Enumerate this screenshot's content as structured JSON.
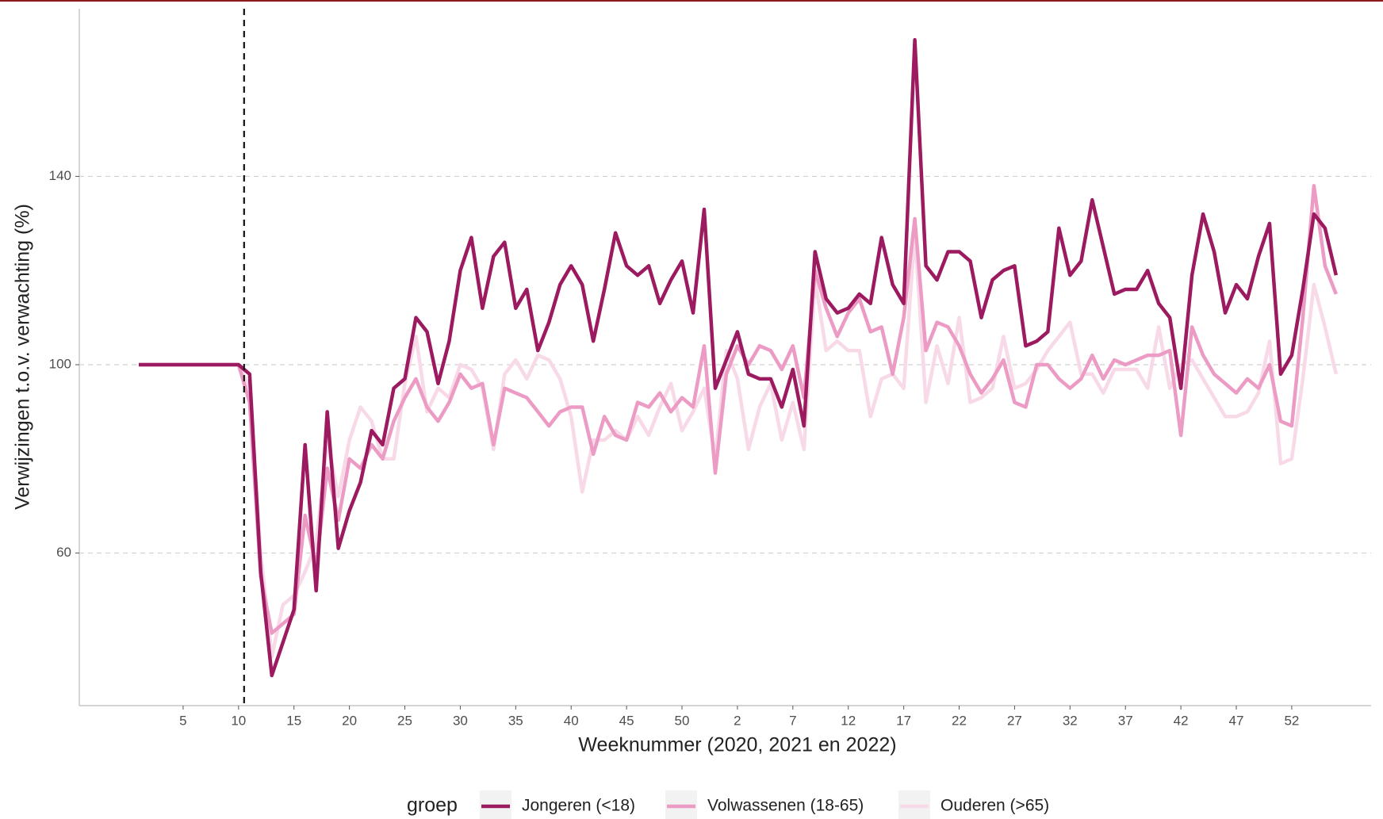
{
  "chart_data": {
    "type": "line",
    "x_label": "Weeknummer (2020, 2021 en 2022)",
    "y_label": "Verwijzingen t.o.v. verwachting (%)",
    "legend_title": "groep",
    "categories": [
      null,
      null,
      null,
      null,
      "5",
      null,
      null,
      null,
      null,
      "10",
      null,
      null,
      null,
      null,
      "15",
      null,
      null,
      null,
      null,
      "20",
      null,
      null,
      null,
      null,
      "25",
      null,
      null,
      null,
      null,
      "30",
      null,
      null,
      null,
      null,
      "35",
      null,
      null,
      null,
      null,
      "40",
      null,
      null,
      null,
      null,
      "45",
      null,
      null,
      null,
      null,
      "50",
      null,
      null,
      null,
      null,
      "2",
      null,
      null,
      null,
      null,
      "7",
      null,
      null,
      null,
      null,
      "12",
      null,
      null,
      null,
      null,
      "17",
      null,
      null,
      null,
      null,
      "22",
      null,
      null,
      null,
      null,
      "27",
      null,
      null,
      null,
      null,
      "32",
      null,
      null,
      null,
      null,
      "37",
      null,
      null,
      null,
      null,
      "42",
      null,
      null,
      null,
      null,
      "47",
      null,
      null,
      null,
      null,
      "52",
      null,
      null,
      null,
      null
    ],
    "series": [
      {
        "name": "Jongeren (<18)",
        "color": "#9c1a5f",
        "values": [
          100,
          100,
          100,
          100,
          100,
          100,
          100,
          100,
          100,
          100,
          98,
          56,
          34,
          41,
          48,
          83,
          52,
          90,
          61,
          69,
          75,
          86,
          83,
          95,
          97,
          110,
          107,
          96,
          105,
          120,
          127,
          112,
          123,
          126,
          112,
          116,
          103,
          109,
          117,
          121,
          117,
          105,
          116,
          128,
          121,
          119,
          121,
          113,
          118,
          122,
          111,
          133,
          95,
          101,
          107,
          98,
          97,
          97,
          91,
          99,
          87,
          124,
          114,
          111,
          112,
          115,
          113,
          127,
          117,
          113,
          169,
          121,
          118,
          124,
          124,
          122,
          110,
          118,
          120,
          121,
          104,
          105,
          107,
          129,
          119,
          122,
          135,
          125,
          115,
          116,
          116,
          120,
          113,
          110,
          95,
          119,
          132,
          124,
          111,
          117,
          114,
          123,
          130,
          98,
          102,
          116,
          132,
          129,
          119
        ]
      },
      {
        "name": "Volwassenen (18-65)",
        "color": "#ec9cc4",
        "values": [
          100,
          100,
          100,
          100,
          100,
          100,
          100,
          100,
          100,
          100,
          92,
          55,
          43,
          45,
          47,
          68,
          57,
          78,
          67,
          80,
          78,
          83,
          80,
          88,
          93,
          97,
          91,
          88,
          92,
          98,
          95,
          96,
          83,
          95,
          94,
          93,
          90,
          87,
          90,
          91,
          91,
          81,
          89,
          85,
          84,
          92,
          91,
          94,
          90,
          93,
          91,
          104,
          77,
          98,
          104,
          100,
          104,
          103,
          99,
          104,
          93,
          120,
          112,
          106,
          111,
          114,
          107,
          108,
          98,
          110,
          131,
          103,
          109,
          108,
          104,
          98,
          94,
          97,
          101,
          92,
          91,
          100,
          100,
          97,
          95,
          97,
          102,
          97,
          101,
          100,
          101,
          102,
          102,
          103,
          85,
          108,
          102,
          98,
          96,
          94,
          97,
          95,
          100,
          88,
          87,
          110,
          138,
          121,
          115
        ]
      },
      {
        "name": "Ouderen (>65)",
        "color": "#f8d9e8",
        "values": [
          100,
          100,
          100,
          100,
          100,
          100,
          100,
          100,
          100,
          100,
          95,
          60,
          38,
          49,
          51,
          56,
          62,
          84,
          72,
          84,
          91,
          88,
          80,
          80,
          96,
          106,
          90,
          95,
          93,
          100,
          99,
          95,
          82,
          98,
          101,
          97,
          102,
          101,
          97,
          89,
          73,
          84,
          84,
          86,
          84,
          89,
          85,
          91,
          96,
          86,
          90,
          95,
          80,
          103,
          97,
          82,
          91,
          96,
          84,
          92,
          82,
          118,
          103,
          105,
          103,
          103,
          89,
          97,
          98,
          95,
          128,
          92,
          104,
          96,
          110,
          92,
          93,
          95,
          106,
          95,
          96,
          99,
          103,
          106,
          109,
          98,
          98,
          94,
          99,
          99,
          99,
          95,
          108,
          95,
          100,
          101,
          97,
          93,
          89,
          89,
          90,
          94,
          105,
          79,
          80,
          97,
          117,
          108,
          98
        ]
      }
    ],
    "vline_x": 9.5,
    "ylim": [
      27.6,
      175.6
    ],
    "yticks": [
      60,
      100,
      140
    ],
    "grid": true
  }
}
